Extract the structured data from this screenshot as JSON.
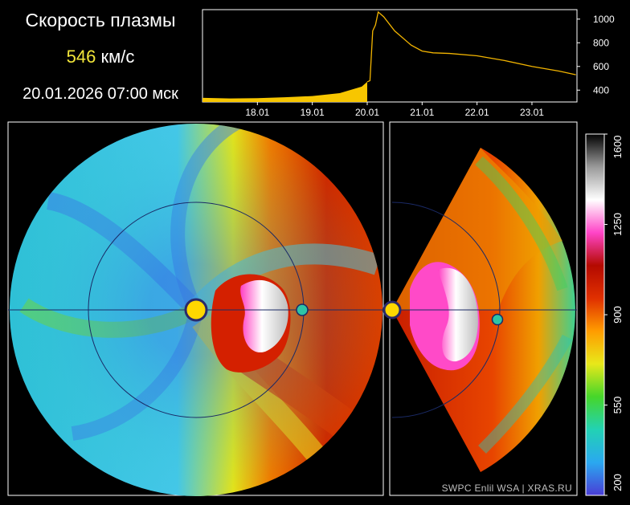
{
  "header": {
    "title": "Скорость плазмы",
    "speed_value": "546",
    "speed_unit": "км/с",
    "datetime": "20.01.2026 07:00 мск"
  },
  "credit": {
    "source": "SWPC Enlil WSA",
    "separator": "|",
    "site": "XRAS.RU"
  },
  "chart_data": [
    {
      "type": "area",
      "x_tick_labels": [
        "18.01",
        "19.01",
        "20.01",
        "21.01",
        "22.01",
        "23.01"
      ],
      "y_tick_labels": [
        "400",
        "600",
        "800",
        "1000"
      ],
      "ylim": [
        300,
        1080
      ],
      "current_marker": "20.01.2026 07:00",
      "series": [
        {
          "x": [
            17.0,
            17.5,
            18.0,
            18.5,
            19.0,
            19.5,
            19.9,
            20.0,
            20.05,
            20.1,
            20.15,
            20.2,
            20.3,
            20.5,
            20.8,
            21.0,
            21.2,
            21.5,
            22.0,
            22.5,
            23.0,
            23.5,
            23.8
          ],
          "y": [
            335,
            330,
            332,
            340,
            350,
            375,
            430,
            470,
            480,
            900,
            950,
            1060,
            1020,
            900,
            780,
            730,
            715,
            710,
            690,
            650,
            600,
            560,
            530
          ]
        }
      ],
      "colors": {
        "filled": "#f7c600",
        "line": "#f2b400"
      }
    },
    {
      "type": "heatmap",
      "panel": "ecliptic-plane",
      "markers": [
        "sun",
        "earth"
      ],
      "colors": {
        "sun": "#ffd700",
        "earth": "#2ec4a6"
      }
    },
    {
      "type": "heatmap",
      "panel": "meridional-plane",
      "markers": [
        "sun",
        "earth"
      ],
      "colors": {
        "sun": "#ffd700",
        "earth": "#2ec4a6"
      }
    },
    {
      "type": "heatmap",
      "panel": "colorbar",
      "tick_labels": [
        "200",
        "550",
        "900",
        "1250",
        "1600"
      ],
      "colors": [
        "#4a3dd6",
        "#2aa8f0",
        "#22d2b4",
        "#46d62a",
        "#e8e81a",
        "#ff9c00",
        "#e03000",
        "#b40a00",
        "#ff44c8",
        "#ffffff",
        "#9a9a9a",
        "#000000"
      ]
    }
  ]
}
